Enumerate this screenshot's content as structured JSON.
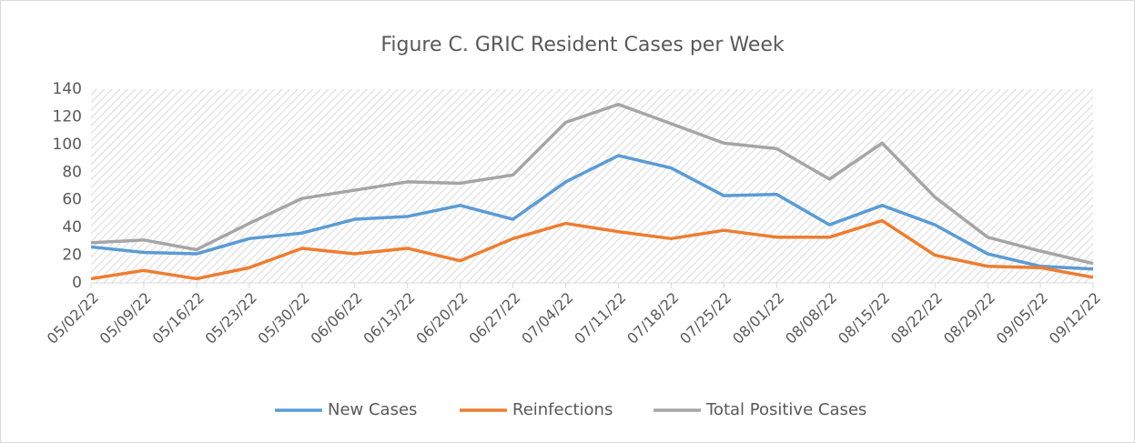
{
  "chart_data": {
    "type": "line",
    "title": "Figure C. GRIC Resident Cases per Week",
    "categories": [
      "05/02/22",
      "05/09/22",
      "05/16/22",
      "05/23/22",
      "05/30/22",
      "06/06/22",
      "06/13/22",
      "06/20/22",
      "06/27/22",
      "07/04/22",
      "07/11/22",
      "07/18/22",
      "07/25/22",
      "08/01/22",
      "08/08/22",
      "08/15/22",
      "08/22/22",
      "08/29/22",
      "09/05/22",
      "09/12/22"
    ],
    "series": [
      {
        "name": "New Cases",
        "color": "#5b9bd5",
        "values": [
          26,
          22,
          21,
          32,
          36,
          46,
          48,
          56,
          46,
          73,
          92,
          83,
          63,
          64,
          42,
          56,
          42,
          21,
          12,
          10
        ]
      },
      {
        "name": "Reinfections",
        "color": "#ed7d31",
        "values": [
          3,
          9,
          3,
          11,
          25,
          21,
          25,
          16,
          32,
          43,
          37,
          32,
          38,
          33,
          33,
          45,
          20,
          12,
          11,
          4
        ]
      },
      {
        "name": "Total Positive Cases",
        "color": "#a5a5a5",
        "values": [
          29,
          31,
          24,
          43,
          61,
          67,
          73,
          72,
          78,
          116,
          129,
          115,
          101,
          97,
          75,
          101,
          62,
          33,
          23,
          14
        ]
      }
    ],
    "ylim": [
      0,
      140
    ],
    "yticks": [
      0,
      20,
      40,
      60,
      80,
      100,
      120,
      140
    ],
    "grid": false,
    "legend": "bottom"
  }
}
